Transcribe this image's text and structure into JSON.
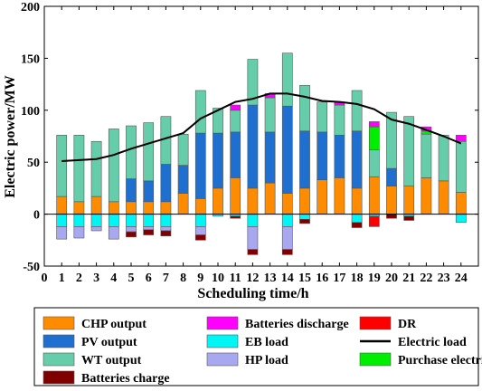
{
  "chart_data": {
    "type": "bar",
    "stacked": true,
    "xlabel": "Scheduling time/h",
    "ylabel": "Electric power/MW",
    "xlim": [
      0,
      25
    ],
    "ylim": [
      -50,
      200
    ],
    "x_ticks": [
      "0",
      "1",
      "2",
      "3",
      "4",
      "5",
      "6",
      "7",
      "8",
      "9",
      "10",
      "11",
      "12",
      "13",
      "14",
      "15",
      "16",
      "17",
      "18",
      "19",
      "20",
      "21",
      "22",
      "23",
      "24"
    ],
    "y_ticks": [
      "-50",
      "0",
      "50",
      "100",
      "150",
      "200"
    ],
    "categories": [
      "1",
      "2",
      "3",
      "4",
      "5",
      "6",
      "7",
      "8",
      "9",
      "10",
      "11",
      "12",
      "13",
      "14",
      "15",
      "16",
      "17",
      "18",
      "19",
      "20",
      "21",
      "22",
      "23",
      "24"
    ],
    "series": [
      {
        "name": "CHP output",
        "color": "#FF8C00",
        "values": [
          17,
          12,
          17,
          12,
          12,
          12,
          12,
          20,
          15,
          25,
          35,
          25,
          30,
          20,
          25,
          33,
          35,
          25,
          36,
          27,
          27,
          35,
          32,
          21
        ]
      },
      {
        "name": "PV output",
        "color": "#1F6FD0",
        "values": [
          0,
          0,
          0,
          0,
          22,
          20,
          36,
          27,
          63,
          53,
          44,
          80,
          49,
          84,
          55,
          46,
          41,
          55,
          0,
          17,
          0,
          0,
          0,
          0
        ]
      },
      {
        "name": "WT output",
        "color": "#66CDAA",
        "values": [
          59,
          64,
          53,
          70,
          51,
          56,
          46,
          30,
          41,
          24,
          21,
          44,
          33,
          51,
          44,
          29,
          29,
          39,
          26,
          54,
          67,
          42,
          44,
          49
        ]
      },
      {
        "name": "Purchase electricity",
        "color": "#00EE00",
        "values": [
          0,
          0,
          0,
          0,
          0,
          0,
          0,
          0,
          0,
          0,
          0,
          0,
          0,
          0,
          0,
          0,
          0,
          0,
          22,
          0,
          0,
          3,
          0,
          0
        ]
      },
      {
        "name": "Batteries discharge",
        "color": "#FF00FF",
        "values": [
          0,
          0,
          0,
          0,
          0,
          0,
          0,
          0,
          0,
          0,
          5,
          0,
          4,
          0,
          0,
          0,
          3,
          0,
          5,
          0,
          0,
          4,
          0,
          6
        ]
      },
      {
        "name": "PV output",
        "color": "#1F6FD0",
        "values": [
          0,
          0,
          0,
          0,
          0,
          0,
          0,
          0,
          0,
          0,
          0,
          0,
          0,
          0,
          0,
          0,
          0,
          0,
          0,
          0,
          0,
          0,
          0,
          0
        ]
      },
      {
        "name": "EB load",
        "color": "#00F5F5",
        "values": [
          -12,
          -12,
          -12,
          -12,
          -12,
          -12,
          -12,
          0,
          -12,
          -2,
          -2,
          -12,
          0,
          -12,
          -5,
          0,
          0,
          -8,
          -2,
          0,
          -2,
          0,
          0,
          -8
        ]
      },
      {
        "name": "HP load",
        "color": "#A8A8F0",
        "values": [
          -12,
          -11,
          -4,
          -12,
          -5,
          -3,
          -4,
          0,
          -8,
          0,
          0,
          -22,
          0,
          -22,
          0,
          0,
          0,
          0,
          0,
          0,
          0,
          0,
          0,
          0
        ]
      },
      {
        "name": "Batteries charge",
        "color": "#800000",
        "values": [
          0,
          0,
          0,
          0,
          -5,
          -5,
          -5,
          0,
          -5,
          0,
          -2,
          -5,
          0,
          -5,
          -4,
          0,
          0,
          -5,
          0,
          -4,
          -4,
          0,
          0,
          0
        ]
      },
      {
        "name": "DR",
        "color": "#FF0000",
        "values": [
          0,
          0,
          0,
          0,
          0,
          0,
          0,
          0,
          0,
          0,
          0,
          0,
          0,
          0,
          0,
          0,
          0,
          0,
          -10,
          0,
          0,
          0,
          0,
          0
        ]
      }
    ],
    "line_series": {
      "name": "Electric load",
      "color": "#000000",
      "values": [
        51,
        52,
        53,
        57,
        63,
        68,
        73,
        78,
        92,
        100,
        108,
        111,
        116,
        116,
        113,
        109,
        108,
        106,
        101,
        91,
        87,
        81,
        75,
        68
      ]
    },
    "legend": {
      "placement": "bottom",
      "entries": [
        {
          "name": "CHP output",
          "color": "#FF8C00",
          "kind": "patch"
        },
        {
          "name": "Batteries discharge",
          "color": "#FF00FF",
          "kind": "patch"
        },
        {
          "name": "DR",
          "color": "#FF0000",
          "kind": "patch"
        },
        {
          "name": "PV output",
          "color": "#1F6FD0",
          "kind": "patch"
        },
        {
          "name": "EB load",
          "color": "#00F5F5",
          "kind": "patch"
        },
        {
          "name": "Electric load",
          "color": "#000000",
          "kind": "line"
        },
        {
          "name": "WT output",
          "color": "#66CDAA",
          "kind": "patch"
        },
        {
          "name": "HP load",
          "color": "#A8A8F0",
          "kind": "patch"
        },
        {
          "name": "Purchase electricity",
          "color": "#00EE00",
          "kind": "patch"
        },
        {
          "name": "Batteries charge",
          "color": "#800000",
          "kind": "patch"
        }
      ]
    }
  }
}
